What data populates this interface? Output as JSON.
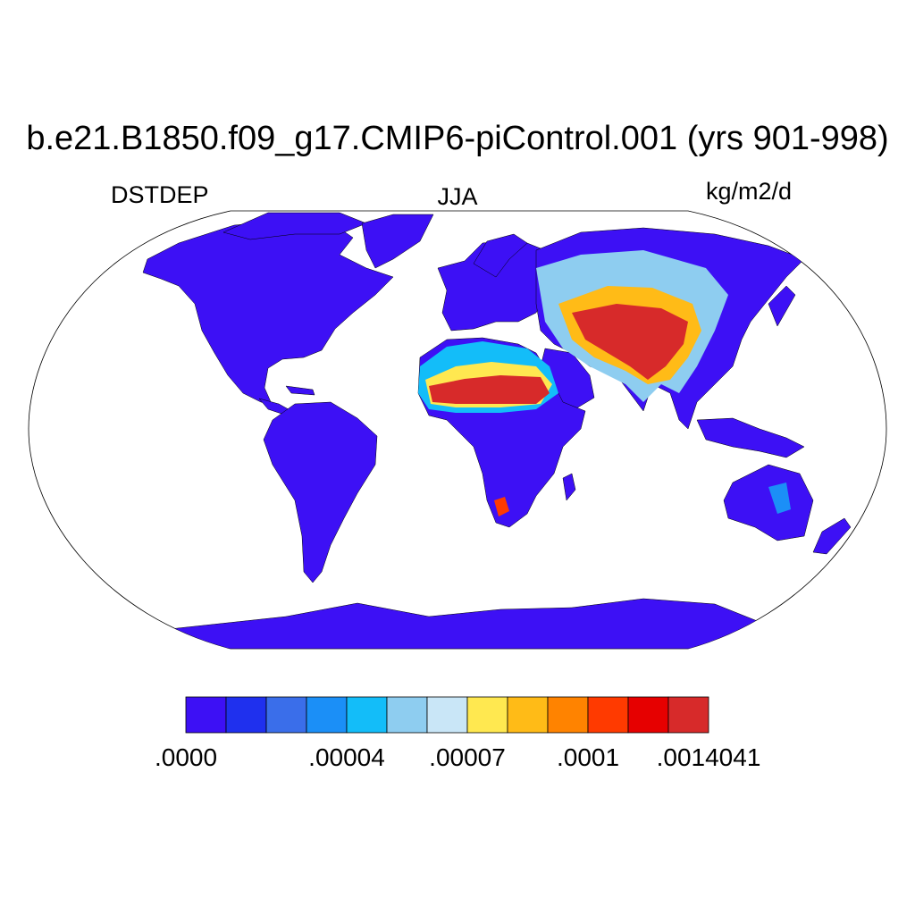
{
  "title": "b.e21.B1850.f09_g17.CMIP6-piControl.001 (yrs 901-998)",
  "variable": "DSTDEP",
  "season": "JJA",
  "units": "kg/m2/d",
  "projection": "robinson",
  "colorbar": {
    "colors": [
      "#3d10f5",
      "#1f30ee",
      "#3a6eea",
      "#1b8ff7",
      "#13bdf9",
      "#8ecdf0",
      "#c9e6f7",
      "#ffe850",
      "#ffbb17",
      "#ff8300",
      "#ff3a00",
      "#e60000",
      "#d72a2a"
    ],
    "labels": [
      ".0000",
      ".00004",
      ".00007",
      ".0001",
      ".0014041"
    ],
    "label_positions": [
      0,
      3,
      5,
      7,
      9
    ]
  },
  "map_colors": {
    "land_low": "#3d10f5",
    "ocean": "#ffffff"
  }
}
